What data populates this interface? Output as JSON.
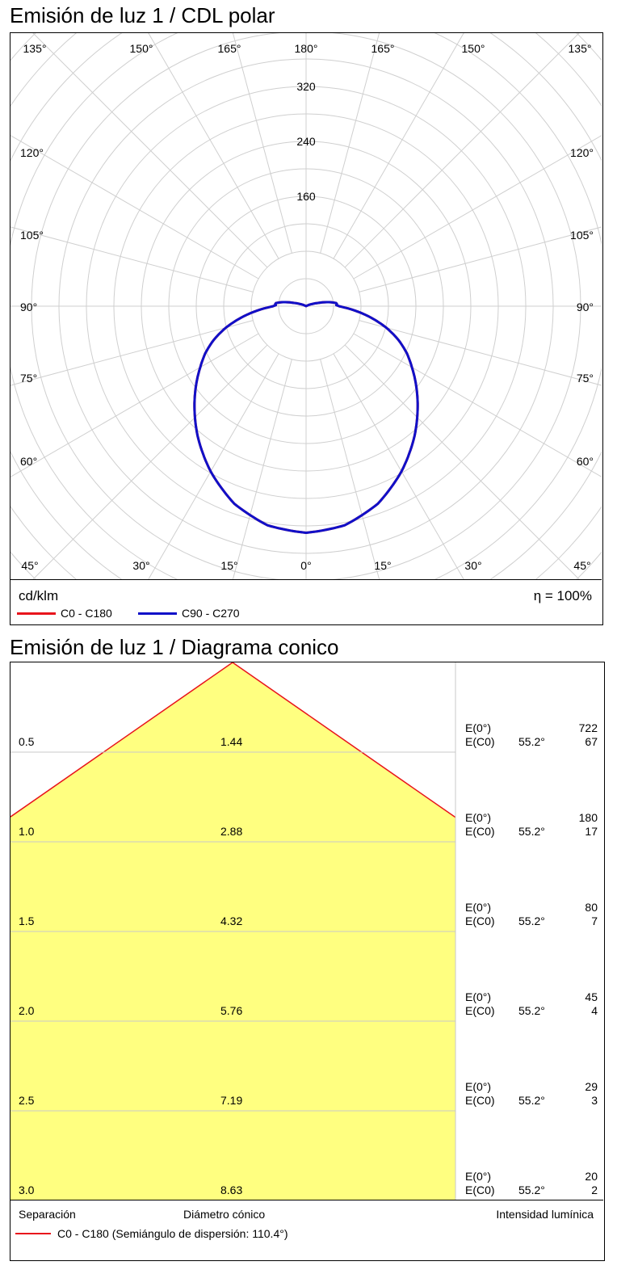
{
  "polar": {
    "title": "Emisión de luz 1 / CDL polar",
    "unit": "cd/klm",
    "efficiency": "η = 100%",
    "legend": [
      {
        "name": "C0 - C180",
        "color": "#e8141c"
      },
      {
        "name": "C90 - C270",
        "color": "#1010c8"
      }
    ]
  },
  "cone": {
    "title": "Emisión de luz 1 / Diagrama conico",
    "legend_separation": "Separación",
    "legend_diameter": "Diámetro cónico",
    "legend_intensity": "Intensidad lumínica",
    "legend_curve": "C0 - C180 (Semiángulo de dispersión: 110.4°)",
    "curve_color": "#e8141c",
    "fill_color": "#ffff80"
  },
  "chart_data": [
    {
      "type": "line",
      "subtype": "polar",
      "title": "Emisión de luz 1 / CDL polar",
      "unit": "cd/klm",
      "radial_ticks": [
        160,
        240,
        320
      ],
      "r_max": 400,
      "angle_labels_top": [
        "135°",
        "150°",
        "165°",
        "180°",
        "165°",
        "150°",
        "135°"
      ],
      "angle_labels_side_left": [
        "120°",
        "105°",
        "90°",
        "75°",
        "60°"
      ],
      "angle_labels_side_right": [
        "120°",
        "105°",
        "90°",
        "75°",
        "60°"
      ],
      "angle_labels_bottom": [
        "45°",
        "30°",
        "15°",
        "0°",
        "15°",
        "30°",
        "45°"
      ],
      "series": [
        {
          "name": "C90 - C270",
          "color": "#1010c8",
          "angles_deg": [
            0,
            10,
            20,
            30,
            40,
            45,
            50,
            55,
            60,
            65,
            70,
            75,
            80,
            85,
            88,
            90,
            92,
            94,
            96,
            100,
            105,
            110,
            120,
            150,
            180
          ],
          "values": [
            330,
            324,
            306,
            278,
            246,
            229,
            212,
            195,
            178,
            162,
            143,
            121,
            96,
            71,
            56,
            48,
            44,
            45,
            44,
            34,
            18,
            9,
            0,
            0,
            0
          ]
        },
        {
          "name": "C0 - C180",
          "color": "#e8141c",
          "angles_deg": [
            0,
            10,
            20,
            30,
            40,
            45,
            50,
            55,
            60,
            65,
            70,
            75,
            80,
            85,
            88,
            90,
            92,
            94,
            96,
            100,
            105,
            110,
            120,
            150,
            180
          ],
          "values": [
            330,
            324,
            306,
            278,
            246,
            229,
            212,
            195,
            178,
            162,
            143,
            121,
            96,
            71,
            56,
            48,
            44,
            45,
            44,
            34,
            18,
            9,
            0,
            0,
            0
          ]
        }
      ],
      "efficiency": "η = 100%"
    },
    {
      "type": "area",
      "title": "Emisión de luz 1 / Diagrama conico",
      "half_angle_deg": 110.4,
      "rows": [
        {
          "separation": "0.5",
          "diameter": "1.44",
          "e0_label": "E(0°)",
          "e0": "722",
          "ec0_label": "E(C0)",
          "angle": "55.2°",
          "ec0": "67"
        },
        {
          "separation": "1.0",
          "diameter": "2.88",
          "e0_label": "E(0°)",
          "e0": "180",
          "ec0_label": "E(C0)",
          "angle": "55.2°",
          "ec0": "17"
        },
        {
          "separation": "1.5",
          "diameter": "4.32",
          "e0_label": "E(0°)",
          "e0": "80",
          "ec0_label": "E(C0)",
          "angle": "55.2°",
          "ec0": "7"
        },
        {
          "separation": "2.0",
          "diameter": "5.76",
          "e0_label": "E(0°)",
          "e0": "45",
          "ec0_label": "E(C0)",
          "angle": "55.2°",
          "ec0": "4"
        },
        {
          "separation": "2.5",
          "diameter": "7.19",
          "e0_label": "E(0°)",
          "e0": "29",
          "ec0_label": "E(C0)",
          "angle": "55.2°",
          "ec0": "3"
        },
        {
          "separation": "3.0",
          "diameter": "8.63",
          "e0_label": "E(0°)",
          "e0": "20",
          "ec0_label": "E(C0)",
          "angle": "55.2°",
          "ec0": "2"
        }
      ]
    }
  ]
}
